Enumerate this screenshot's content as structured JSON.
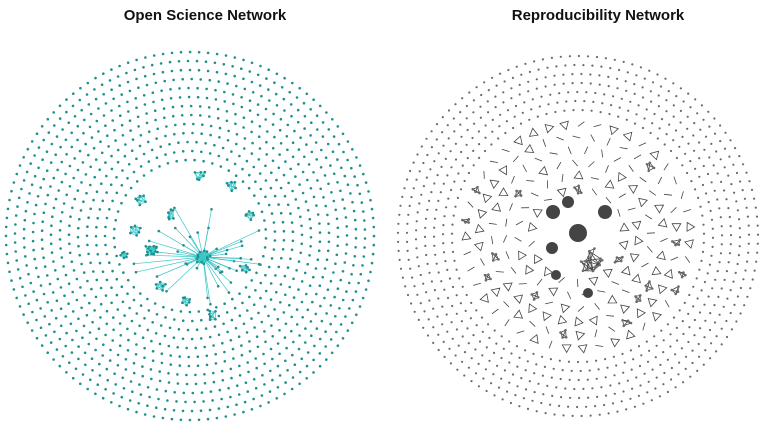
{
  "panels": [
    {
      "title": "Open Science Network"
    },
    {
      "title": "Reproducibility Network"
    }
  ]
}
